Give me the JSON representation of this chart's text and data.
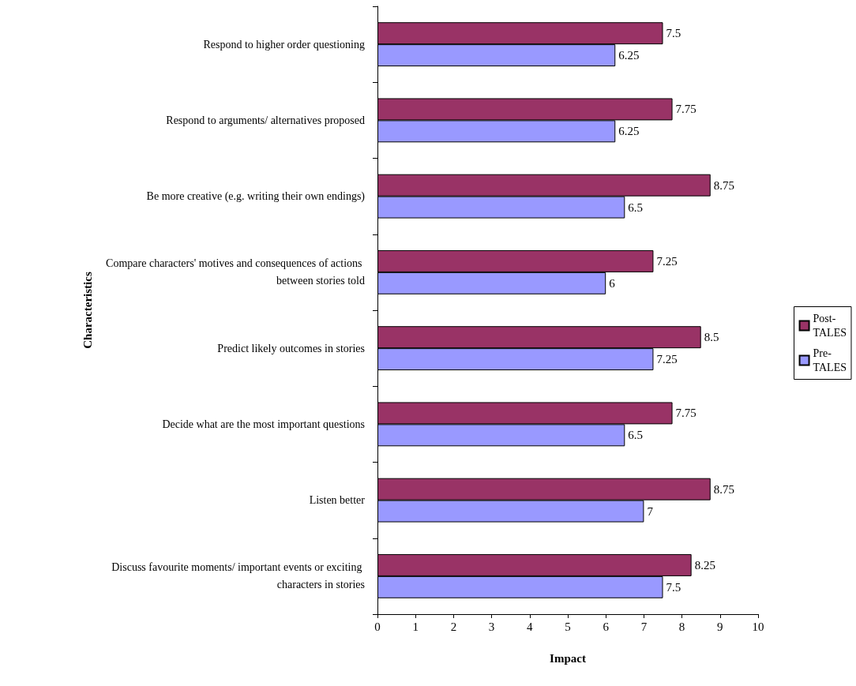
{
  "chart_data": {
    "type": "bar",
    "orientation": "horizontal",
    "xlabel": "Impact",
    "ylabel": "Characteristics",
    "categories": [
      "Respond to higher order questioning",
      "Respond to arguments/ alternatives proposed",
      "Be more creative (e.g. writing their own endings)",
      "Compare characters' motives and consequences of actions between stories told",
      "Predict likely outcomes in stories",
      "Decide what are the most important questions",
      "Listen better",
      "Discuss favourite moments/ important events or exciting characters in stories"
    ],
    "series": [
      {
        "name": "Post-TALES",
        "color": "#993366",
        "values": [
          7.5,
          7.75,
          8.75,
          7.25,
          8.5,
          7.75,
          8.75,
          8.25
        ]
      },
      {
        "name": "Pre-TALES",
        "color": "#9999ff",
        "values": [
          6.25,
          6.25,
          6.5,
          6,
          7.25,
          6.5,
          7,
          7.5
        ]
      }
    ],
    "xlim": [
      0,
      10
    ],
    "xticks": [
      0,
      1,
      2,
      3,
      4,
      5,
      6,
      7,
      8,
      9,
      10
    ],
    "grid": false,
    "legend": "right",
    "data_labels": true
  }
}
